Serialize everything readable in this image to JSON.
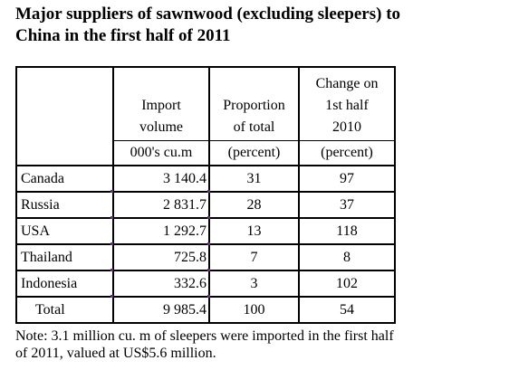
{
  "title": {
    "line1": "Major suppliers of sawnwood (excluding sleepers) to",
    "line2": "China in the first half of 2011"
  },
  "table": {
    "headers": {
      "import": {
        "line1": "Import",
        "line2": "volume",
        "unit": "000's cu.m"
      },
      "proportion": {
        "line1": "Proportion",
        "line2": "of total",
        "unit": "(percent)"
      },
      "change": {
        "line1": "Change on",
        "line2": "1st half",
        "line3": "2010",
        "unit": "(percent)"
      }
    },
    "rows": [
      {
        "country": "Canada",
        "import_volume": "3 140.4",
        "proportion": "31",
        "change": "97"
      },
      {
        "country": "Russia",
        "import_volume": "2 831.7",
        "proportion": "28",
        "change": "37"
      },
      {
        "country": "USA",
        "import_volume": "1 292.7",
        "proportion": "13",
        "change": "118"
      },
      {
        "country": "Thailand",
        "import_volume": "725.8",
        "proportion": "7",
        "change": "8"
      },
      {
        "country": "Indonesia",
        "import_volume": "332.6",
        "proportion": "3",
        "change": "102"
      }
    ],
    "total": {
      "label": "Total",
      "import_volume": "9 985.4",
      "proportion": "100",
      "change": "54"
    }
  },
  "note": {
    "line1": "Note: 3.1 million cu. m of sleepers were imported in the first half",
    "line2": "of 2011, valued at US$5.6 million."
  }
}
